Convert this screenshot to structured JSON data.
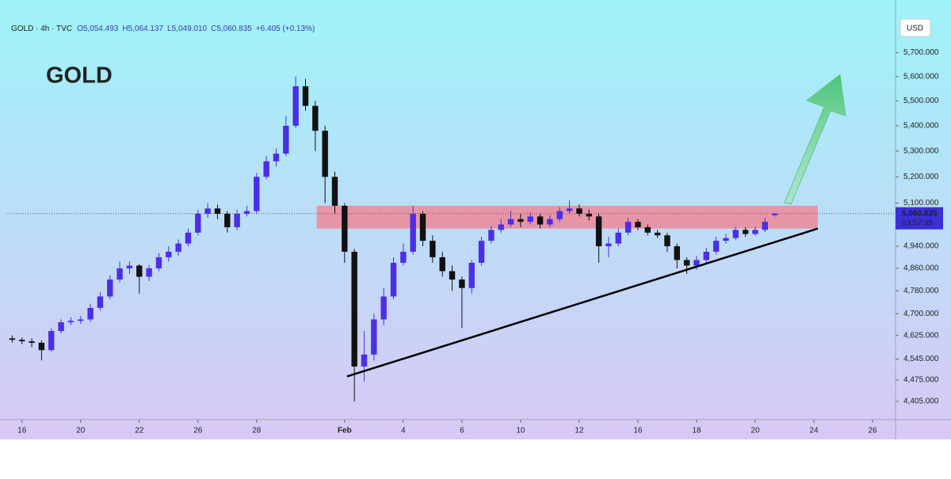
{
  "chart_data": {
    "type": "candlestick",
    "title": "GOLD",
    "header": [
      "GOLD · 4h · TVC",
      "O5,054.493",
      "H5,064.137",
      "L5,049.010",
      "C5,060.835",
      "+6.405 (+0.13%)"
    ],
    "currency": "USD",
    "log_y": true,
    "up_color": "#4b2fe6",
    "down_color": "#111111",
    "xlim": [
      -3.2,
      178.7
    ],
    "ylim": [
      4346,
      5857
    ],
    "xticks": [
      {
        "value": 0,
        "label": "16"
      },
      {
        "value": 12,
        "label": "20"
      },
      {
        "value": 24,
        "label": "22"
      },
      {
        "value": 36,
        "label": "26"
      },
      {
        "value": 48,
        "label": "28"
      },
      {
        "value": 66,
        "label": "Feb"
      },
      {
        "value": 78,
        "label": "4"
      },
      {
        "value": 90,
        "label": "6"
      },
      {
        "value": 102,
        "label": "10"
      },
      {
        "value": 114,
        "label": "12"
      },
      {
        "value": 126,
        "label": "16"
      },
      {
        "value": 138,
        "label": "18"
      },
      {
        "value": 150,
        "label": "20"
      },
      {
        "value": 162,
        "label": "24"
      },
      {
        "value": 174,
        "label": "26"
      }
    ],
    "yticks": [
      {
        "value": 5700,
        "label": "5,700.000"
      },
      {
        "value": 5600,
        "label": "5,600.000"
      },
      {
        "value": 5500,
        "label": "5,500.000"
      },
      {
        "value": 5400,
        "label": "5,400.000"
      },
      {
        "value": 5300,
        "label": "5,300.000"
      },
      {
        "value": 5200,
        "label": "5,200.000"
      },
      {
        "value": 5100,
        "label": "5,100.000"
      },
      {
        "value": 4940,
        "label": "4,940.000"
      },
      {
        "value": 4860,
        "label": "4,860.000"
      },
      {
        "value": 4780,
        "label": "4,780.000"
      },
      {
        "value": 4700,
        "label": "4,700.000"
      },
      {
        "value": 4625,
        "label": "4,625.000"
      },
      {
        "value": 4545,
        "label": "4,545.000"
      },
      {
        "value": 4475,
        "label": "4,475.000"
      },
      {
        "value": 4405,
        "label": "4,405.000"
      }
    ],
    "last_price": {
      "value": 5060.835,
      "label": "5,060.835"
    },
    "countdown": "03:57:35",
    "zone": {
      "xlim": [
        60.3,
        162.8
      ],
      "ylim": [
        5005,
        5090
      ],
      "color": "#f77b8c"
    },
    "trendline": {
      "x": [
        66.5,
        162.8
      ],
      "y": [
        4487,
        5005
      ],
      "color": "#000000"
    },
    "x": [
      -2,
      0,
      2,
      4,
      6,
      8,
      10,
      12,
      14,
      16,
      18,
      20,
      22,
      24,
      26,
      28,
      30,
      32,
      34,
      36,
      38,
      40,
      42,
      44,
      46,
      48,
      50,
      52,
      54,
      56,
      58,
      60,
      62,
      64,
      66,
      68,
      70,
      72,
      74,
      76,
      78,
      80,
      82,
      84,
      86,
      88,
      90,
      92,
      94,
      96,
      98,
      100,
      102,
      104,
      106,
      108,
      110,
      112,
      114,
      116,
      118,
      120,
      122,
      124,
      126,
      128,
      130,
      132,
      134,
      136,
      138,
      140,
      142,
      144,
      146,
      148,
      150,
      152,
      154
    ],
    "open": [
      4615,
      4610,
      4605,
      4600,
      4575,
      4640,
      4670,
      4675,
      4680,
      4720,
      4760,
      4820,
      4860,
      4870,
      4830,
      4860,
      4900,
      4920,
      4950,
      4990,
      5060,
      5080,
      5060,
      5010,
      5060,
      5070,
      5200,
      5260,
      5290,
      5400,
      5560,
      5480,
      5380,
      5200,
      5090,
      4920,
      4520,
      4560,
      4680,
      4760,
      4880,
      4920,
      5060,
      4960,
      4900,
      4850,
      4820,
      4790,
      4880,
      4960,
      5000,
      5020,
      5040,
      5030,
      5050,
      5020,
      5040,
      5070,
      5080,
      5060,
      5050,
      4940,
      4950,
      4990,
      5030,
      5010,
      4990,
      4980,
      4940,
      4890,
      4870,
      4890,
      4920,
      4960,
      4970,
      5000,
      4985,
      5000,
      5054.493
    ],
    "high": [
      4625,
      4618,
      4615,
      4608,
      4650,
      4680,
      4688,
      4692,
      4735,
      4775,
      4835,
      4885,
      4885,
      4875,
      4872,
      4915,
      4940,
      4965,
      5005,
      5075,
      5100,
      5095,
      5070,
      5075,
      5090,
      5215,
      5280,
      5310,
      5440,
      5600,
      5590,
      5500,
      5400,
      5220,
      5100,
      4930,
      4640,
      4700,
      4790,
      4900,
      4950,
      5090,
      5070,
      4980,
      4920,
      4870,
      4830,
      4890,
      4975,
      5015,
      5040,
      5070,
      5060,
      5065,
      5060,
      5055,
      5085,
      5110,
      5095,
      5075,
      5060,
      4975,
      5005,
      5045,
      5040,
      5020,
      5000,
      4990,
      4950,
      4900,
      4905,
      4935,
      4975,
      4985,
      5012,
      5010,
      5012,
      5045,
      5064.137
    ],
    "low": [
      4600,
      4595,
      4585,
      4540,
      4570,
      4632,
      4660,
      4665,
      4672,
      4710,
      4750,
      4810,
      4840,
      4770,
      4815,
      4850,
      4885,
      4905,
      4940,
      4980,
      5045,
      5040,
      4990,
      5000,
      5050,
      5060,
      5190,
      5240,
      5280,
      5390,
      5460,
      5300,
      5100,
      5060,
      4880,
      4405,
      4470,
      4540,
      4660,
      4750,
      4870,
      4910,
      4940,
      4880,
      4830,
      4780,
      4650,
      4770,
      4870,
      4950,
      4990,
      5010,
      5010,
      5020,
      5005,
      5010,
      5030,
      5060,
      5050,
      5035,
      4880,
      4900,
      4940,
      4980,
      5000,
      4980,
      4970,
      4920,
      4860,
      4840,
      4855,
      4880,
      4910,
      4950,
      4962,
      4975,
      4978,
      4992,
      5049.01
    ],
    "close": [
      4610,
      4605,
      4600,
      4575,
      4640,
      4670,
      4675,
      4680,
      4720,
      4760,
      4820,
      4860,
      4870,
      4830,
      4860,
      4900,
      4920,
      4950,
      4990,
      5060,
      5080,
      5060,
      5010,
      5060,
      5070,
      5200,
      5260,
      5290,
      5400,
      5560,
      5480,
      5380,
      5200,
      5090,
      4920,
      4520,
      4560,
      4680,
      4760,
      4880,
      4920,
      5060,
      4960,
      4900,
      4850,
      4820,
      4790,
      4880,
      4960,
      5000,
      5020,
      5040,
      5030,
      5050,
      5020,
      5040,
      5070,
      5080,
      5060,
      5050,
      4940,
      4950,
      4990,
      5030,
      5010,
      4990,
      4980,
      4940,
      4890,
      4870,
      4890,
      4920,
      4960,
      4970,
      5000,
      4985,
      5000,
      5030,
      5060.835
    ]
  }
}
